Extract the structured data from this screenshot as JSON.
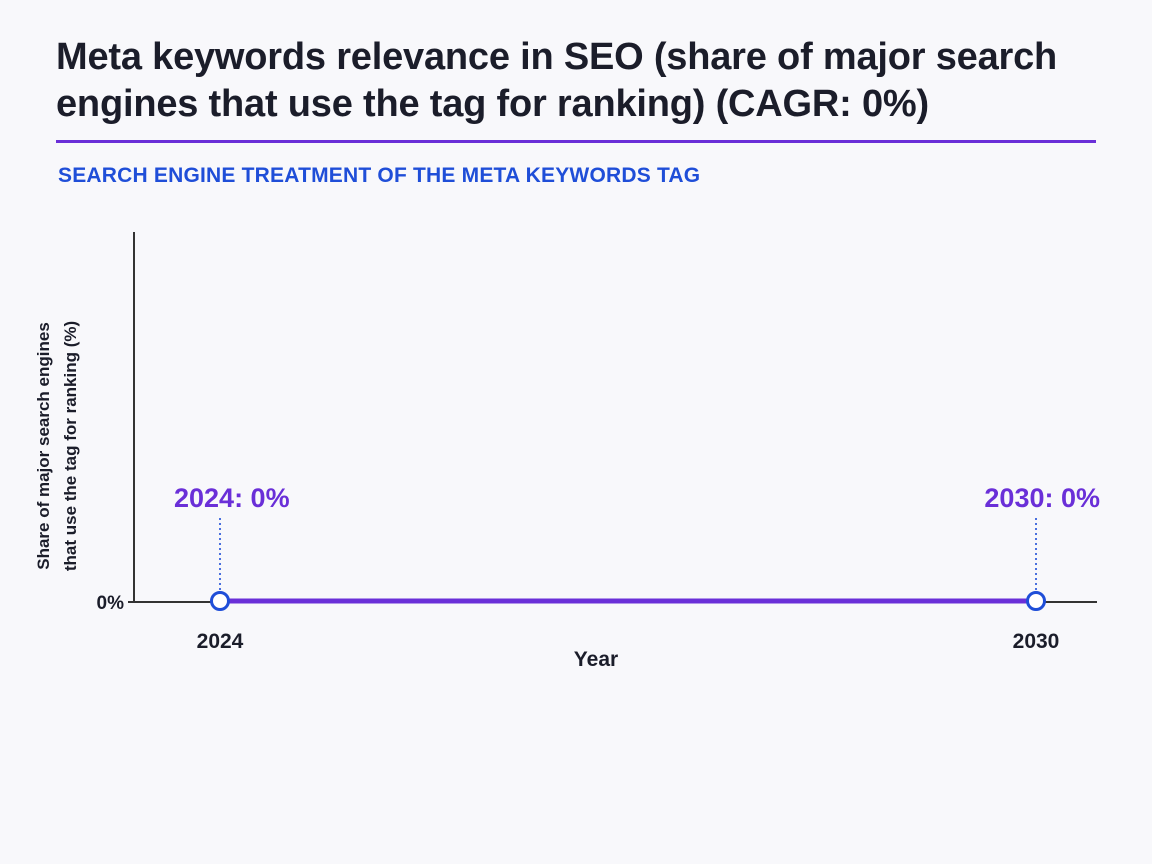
{
  "title": "Meta keywords relevance in SEO (share of major search engines that use the tag for ranking) (CAGR: 0%)",
  "subtitle": "SEARCH ENGINE TREATMENT OF THE META KEYWORDS TAG",
  "colors": {
    "line": "#6a2fd8",
    "marker": "#1f4ed8",
    "annotation": "#6a2fd8",
    "subtitle": "#1f4ed8",
    "axis": "#333333"
  },
  "chart_data": {
    "type": "line",
    "title": "Meta keywords relevance in SEO (share of major search engines that use the tag for ranking) (CAGR: 0%)",
    "subtitle": "SEARCH ENGINE TREATMENT OF THE META KEYWORDS TAG",
    "xlabel": "Year",
    "ylabel_lines": [
      "Share of major search engines",
      "that use the tag for ranking (%)"
    ],
    "x": [
      2024,
      2030
    ],
    "x_tick_labels": [
      "2024",
      "2030"
    ],
    "y_tick_labels": [
      "0%"
    ],
    "series": [
      {
        "values": [
          0,
          0
        ]
      }
    ],
    "annotations": [
      "2024: 0%",
      "2030: 0%"
    ],
    "grid": false,
    "legend": "none"
  }
}
